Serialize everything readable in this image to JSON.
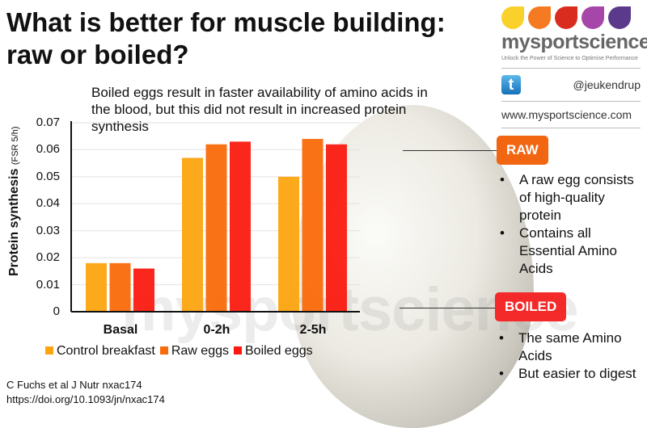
{
  "title": "What is better for muscle building: raw or boiled?",
  "subtitle": "Boiled eggs result in faster availability of amino acids in the blood, but this did not result in increased protein synthesis",
  "watermark": "mysportscience",
  "logo": {
    "brand": "mysportscience",
    "tagline": "Unlock the Power of Science to Optimise Performance",
    "twitter": "@jeukendrup",
    "url": "www.mysportscience.com",
    "drop_colors": [
      "#f9d12a",
      "#f57a22",
      "#d92c1f",
      "#a546a8",
      "#5b3a8c"
    ]
  },
  "chart_data": {
    "type": "bar",
    "ylabel": "Protein synthesis",
    "ylabel_unit": "(FSR 5/h)",
    "ylim": [
      0,
      0.07
    ],
    "yticks": [
      "0",
      "0.01",
      "0.02",
      "0.03",
      "0.04",
      "0.05",
      "0.06",
      "0.07"
    ],
    "grid": true,
    "legend_position": "bottom",
    "categories": [
      "Basal",
      "0-2h",
      "2-5h"
    ],
    "series": [
      {
        "name": "Control breakfast",
        "color": "#fca510",
        "values": [
          0.018,
          0.057,
          0.05
        ]
      },
      {
        "name": "Raw eggs",
        "color": "#fa6a0a",
        "values": [
          0.018,
          0.062,
          0.064
        ]
      },
      {
        "name": "Boiled eggs",
        "color": "#fb1a10",
        "values": [
          0.016,
          0.063,
          0.062
        ]
      }
    ]
  },
  "raw": {
    "label": "RAW",
    "bullets": [
      "A raw egg consists of high-quality protein",
      "Contains all Essential Amino Acids"
    ]
  },
  "boiled": {
    "label": "BOILED",
    "bullets": [
      "The same Amino Acids",
      "But easier to digest"
    ]
  },
  "citation": {
    "ref": "C Fuchs et al J Nutr nxac174",
    "doi": "https://doi.org/10.1093/jn/nxac174"
  }
}
